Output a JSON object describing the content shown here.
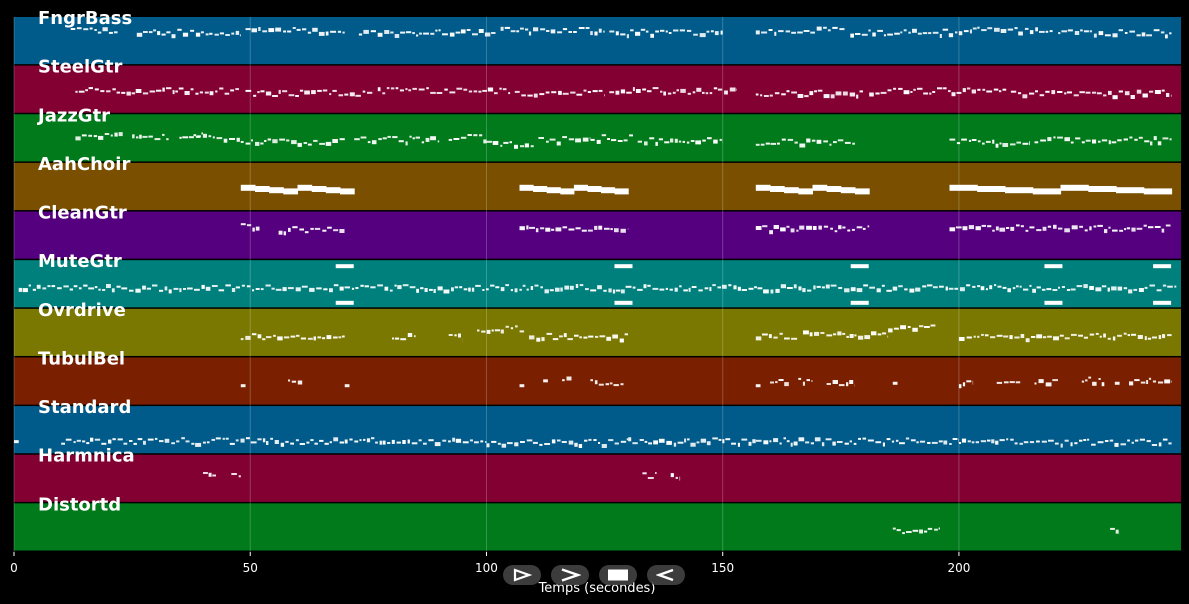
{
  "chart_data": {
    "type": "piano-roll",
    "xlabel": "Temps (secondes)",
    "xlim": [
      0,
      247
    ],
    "x_ticks": [
      0,
      50,
      100,
      150,
      200
    ],
    "grid": true,
    "tracks": [
      {
        "name": "FngrBass",
        "color": "#005a8a",
        "notes": [
          [
            12,
            22,
            0.25
          ],
          [
            26,
            48,
            0.3
          ],
          [
            49,
            70,
            0.25
          ],
          [
            73,
            102,
            0.3
          ],
          [
            103,
            125,
            0.25
          ],
          [
            126,
            150,
            0.3
          ],
          [
            157,
            176,
            0.25
          ],
          [
            177,
            200,
            0.3
          ],
          [
            200,
            220,
            0.25
          ],
          [
            221,
            245,
            0.3
          ]
        ]
      },
      {
        "name": "SteelGtr",
        "color": "#820032",
        "notes": [
          [
            13,
            48,
            0.5
          ],
          [
            49,
            76,
            0.55
          ],
          [
            77,
            105,
            0.5
          ],
          [
            106,
            125,
            0.55
          ],
          [
            126,
            153,
            0.5
          ],
          [
            157,
            180,
            0.55
          ],
          [
            181,
            210,
            0.5
          ],
          [
            211,
            245,
            0.55
          ]
        ]
      },
      {
        "name": "JazzGtr",
        "color": "#007a1a",
        "notes": [
          [
            13,
            23,
            0.4
          ],
          [
            25,
            33,
            0.45
          ],
          [
            35,
            40,
            0.42
          ],
          [
            38,
            48,
            0.46
          ],
          [
            48,
            70,
            0.55
          ],
          [
            72,
            90,
            0.5
          ],
          [
            92,
            100,
            0.46
          ],
          [
            100,
            110,
            0.6
          ],
          [
            111,
            122,
            0.5
          ],
          [
            122,
            131,
            0.47
          ],
          [
            132,
            150,
            0.52
          ],
          [
            157,
            178,
            0.55
          ],
          [
            198,
            215,
            0.55
          ],
          [
            216,
            245,
            0.5
          ]
        ]
      },
      {
        "name": "AahChoir",
        "color": "#7a5000",
        "chords": [
          {
            "start": 48,
            "end": 72
          },
          {
            "start": 107,
            "end": 130
          },
          {
            "start": 157,
            "end": 181
          },
          {
            "start": 198,
            "end": 245
          }
        ]
      },
      {
        "name": "CleanGtr",
        "color": "#55007e",
        "notes": [
          [
            48,
            52,
            0.3
          ],
          [
            56,
            70,
            0.35
          ],
          [
            107,
            130,
            0.32
          ],
          [
            157,
            181,
            0.33
          ],
          [
            198,
            245,
            0.32
          ]
        ]
      },
      {
        "name": "MuteGtr",
        "color": "#00807c",
        "notes": [
          [
            1,
            246,
            0.55
          ]
        ],
        "accents": [
          70,
          129,
          179,
          220,
          243
        ]
      },
      {
        "name": "Ovrdrive",
        "color": "#7a7800",
        "notes": [
          [
            48,
            70,
            0.55
          ],
          [
            80,
            85,
            0.55
          ],
          [
            92,
            95,
            0.55
          ],
          [
            98,
            108,
            0.4
          ],
          [
            109,
            130,
            0.55
          ],
          [
            157,
            166,
            0.55
          ],
          [
            167,
            185,
            0.5
          ],
          [
            185,
            195,
            0.35
          ],
          [
            200,
            245,
            0.55
          ]
        ]
      },
      {
        "name": "TubulBel",
        "color": "#7a2000",
        "notes": [
          [
            48,
            49,
            0.55
          ],
          [
            58,
            61,
            0.45
          ],
          [
            70,
            71,
            0.55
          ],
          [
            107,
            108,
            0.55
          ],
          [
            112,
            113,
            0.45
          ],
          [
            116,
            118,
            0.4
          ],
          [
            122,
            129,
            0.5
          ],
          [
            157,
            158,
            0.55
          ],
          [
            160,
            164,
            0.5
          ],
          [
            166,
            169,
            0.45
          ],
          [
            172,
            178,
            0.5
          ],
          [
            186,
            187,
            0.5
          ],
          [
            200,
            203,
            0.5
          ],
          [
            208,
            213,
            0.45
          ],
          [
            216,
            221,
            0.5
          ],
          [
            226,
            231,
            0.45
          ],
          [
            233,
            234,
            0.5
          ],
          [
            236,
            245,
            0.45
          ]
        ]
      },
      {
        "name": "Standard",
        "color": "#005a8a",
        "notes": [
          [
            0,
            1,
            0.7
          ],
          [
            10,
            100,
            0.7
          ],
          [
            100,
            130,
            0.72
          ],
          [
            130,
            157,
            0.7
          ],
          [
            157,
            200,
            0.7
          ],
          [
            200,
            245,
            0.72
          ]
        ]
      },
      {
        "name": "Harmnica",
        "color": "#820032",
        "notes": [
          [
            40,
            43,
            0.4
          ],
          [
            46,
            48,
            0.4
          ],
          [
            133,
            136,
            0.4
          ],
          [
            139,
            141,
            0.4
          ]
        ]
      },
      {
        "name": "Distortd",
        "color": "#007a1a",
        "notes": [
          [
            186,
            196,
            0.55
          ],
          [
            232,
            234,
            0.55
          ]
        ]
      }
    ]
  },
  "controls": [
    {
      "name": "play-outline-button",
      "glyph": "play-outline"
    },
    {
      "name": "forward-button",
      "glyph": "chevron-right"
    },
    {
      "name": "stop-button",
      "glyph": "stop"
    },
    {
      "name": "rewind-button",
      "glyph": "play-left-outline"
    }
  ]
}
